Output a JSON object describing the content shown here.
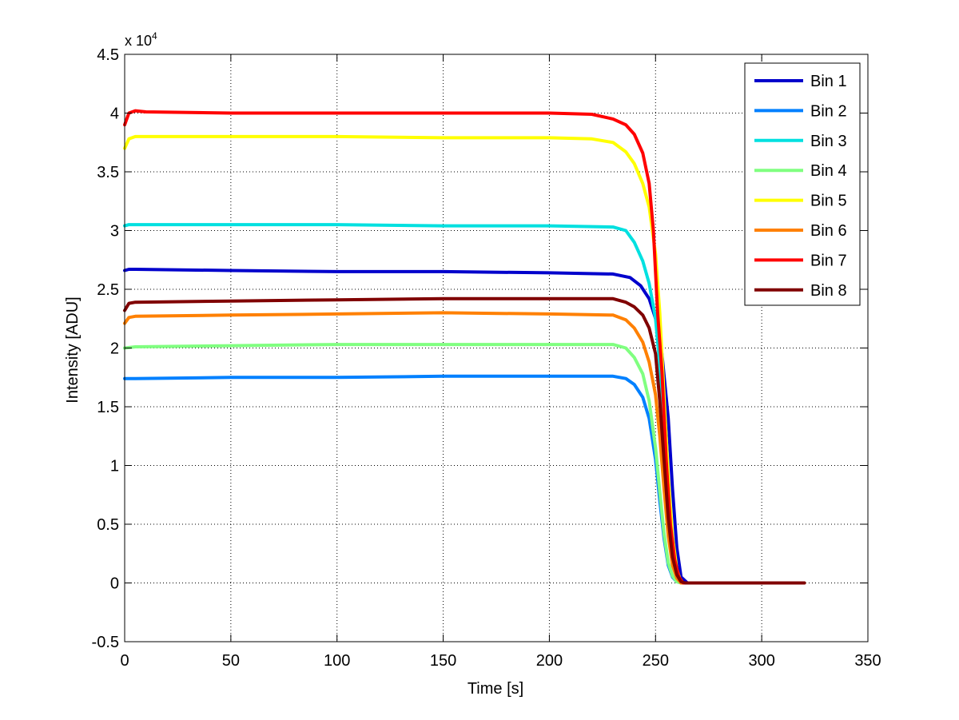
{
  "chart_data": {
    "type": "line",
    "title": "",
    "xlabel": "Time [s]",
    "ylabel": "Intensity [ADU]",
    "xlim": [
      0,
      350
    ],
    "ylim": [
      -0.5,
      4.5
    ],
    "exponent_label": "x 10",
    "exponent_power": "4",
    "xticks": [
      0,
      50,
      100,
      150,
      200,
      250,
      300,
      350
    ],
    "yticks": [
      -0.5,
      0,
      0.5,
      1,
      1.5,
      2,
      2.5,
      3,
      3.5,
      4,
      4.5
    ],
    "xtick_labels": [
      "0",
      "50",
      "100",
      "150",
      "200",
      "250",
      "300",
      "350"
    ],
    "ytick_labels": [
      "-0.5",
      "0",
      "0.5",
      "1",
      "1.5",
      "2",
      "2.5",
      "3",
      "3.5",
      "4",
      "4.5"
    ],
    "grid": true,
    "legend_position": "top-right",
    "series": [
      {
        "name": "Bin 1",
        "color": "#0000cc",
        "x": [
          0,
          2,
          5,
          50,
          100,
          150,
          200,
          230,
          238,
          243,
          247,
          250,
          253,
          256,
          258,
          260,
          262,
          265,
          320
        ],
        "y": [
          2.66,
          2.67,
          2.67,
          2.66,
          2.65,
          2.65,
          2.64,
          2.63,
          2.6,
          2.53,
          2.42,
          2.25,
          1.95,
          1.4,
          0.8,
          0.3,
          0.05,
          0.0,
          0.0
        ]
      },
      {
        "name": "Bin 2",
        "color": "#0080ff",
        "x": [
          0,
          5,
          50,
          100,
          150,
          200,
          230,
          236,
          240,
          244,
          247,
          250,
          252,
          254,
          256,
          258,
          260,
          262,
          320
        ],
        "y": [
          1.74,
          1.74,
          1.75,
          1.75,
          1.76,
          1.76,
          1.76,
          1.74,
          1.69,
          1.58,
          1.4,
          1.05,
          0.7,
          0.38,
          0.15,
          0.05,
          0.01,
          0.0,
          0.0
        ]
      },
      {
        "name": "Bin 3",
        "color": "#00e0e0",
        "x": [
          0,
          2,
          5,
          50,
          100,
          150,
          200,
          230,
          236,
          240,
          244,
          247,
          250,
          252,
          254,
          256,
          258,
          260,
          262,
          320
        ],
        "y": [
          3.04,
          3.05,
          3.05,
          3.05,
          3.05,
          3.04,
          3.04,
          3.03,
          3.0,
          2.9,
          2.74,
          2.55,
          2.25,
          1.85,
          1.3,
          0.75,
          0.35,
          0.1,
          0.0,
          0.0
        ]
      },
      {
        "name": "Bin 4",
        "color": "#80ff80",
        "x": [
          0,
          5,
          50,
          100,
          150,
          200,
          230,
          236,
          240,
          244,
          247,
          250,
          252,
          254,
          256,
          258,
          260,
          262,
          320
        ],
        "y": [
          2.0,
          2.01,
          2.02,
          2.03,
          2.03,
          2.03,
          2.03,
          2.0,
          1.92,
          1.78,
          1.55,
          1.15,
          0.78,
          0.42,
          0.17,
          0.06,
          0.01,
          0.0,
          0.0
        ]
      },
      {
        "name": "Bin 5",
        "color": "#ffff00",
        "x": [
          0,
          2,
          5,
          50,
          100,
          150,
          200,
          220,
          230,
          236,
          240,
          244,
          247,
          250,
          252,
          254,
          256,
          258,
          260,
          262,
          320
        ],
        "y": [
          3.7,
          3.78,
          3.8,
          3.8,
          3.8,
          3.79,
          3.79,
          3.78,
          3.75,
          3.67,
          3.57,
          3.4,
          3.2,
          2.8,
          2.3,
          1.6,
          0.9,
          0.4,
          0.12,
          0.0,
          0.0
        ]
      },
      {
        "name": "Bin 6",
        "color": "#ff8000",
        "x": [
          0,
          2,
          5,
          50,
          100,
          150,
          200,
          230,
          236,
          240,
          244,
          247,
          250,
          252,
          254,
          256,
          258,
          260,
          262,
          320
        ],
        "y": [
          2.21,
          2.26,
          2.27,
          2.28,
          2.29,
          2.3,
          2.29,
          2.28,
          2.24,
          2.17,
          2.05,
          1.88,
          1.6,
          1.25,
          0.8,
          0.4,
          0.15,
          0.04,
          0.0,
          0.0
        ]
      },
      {
        "name": "Bin 7",
        "color": "#ff0000",
        "x": [
          0,
          2,
          5,
          10,
          50,
          100,
          150,
          200,
          220,
          230,
          236,
          240,
          244,
          247,
          249,
          251,
          253,
          255,
          257,
          259,
          261,
          263,
          320
        ],
        "y": [
          3.9,
          4.0,
          4.02,
          4.01,
          4.0,
          4.0,
          4.0,
          4.0,
          3.99,
          3.95,
          3.9,
          3.82,
          3.66,
          3.4,
          3.0,
          2.3,
          1.8,
          1.05,
          0.5,
          0.2,
          0.05,
          0.0,
          0.0
        ]
      },
      {
        "name": "Bin 8",
        "color": "#800000",
        "x": [
          0,
          2,
          5,
          50,
          100,
          150,
          200,
          230,
          236,
          240,
          244,
          247,
          250,
          252,
          254,
          256,
          258,
          260,
          262,
          264,
          320
        ],
        "y": [
          2.32,
          2.38,
          2.39,
          2.4,
          2.41,
          2.42,
          2.42,
          2.42,
          2.39,
          2.35,
          2.28,
          2.17,
          1.95,
          1.55,
          1.05,
          0.55,
          0.22,
          0.07,
          0.01,
          0.0,
          0.0
        ]
      }
    ]
  }
}
